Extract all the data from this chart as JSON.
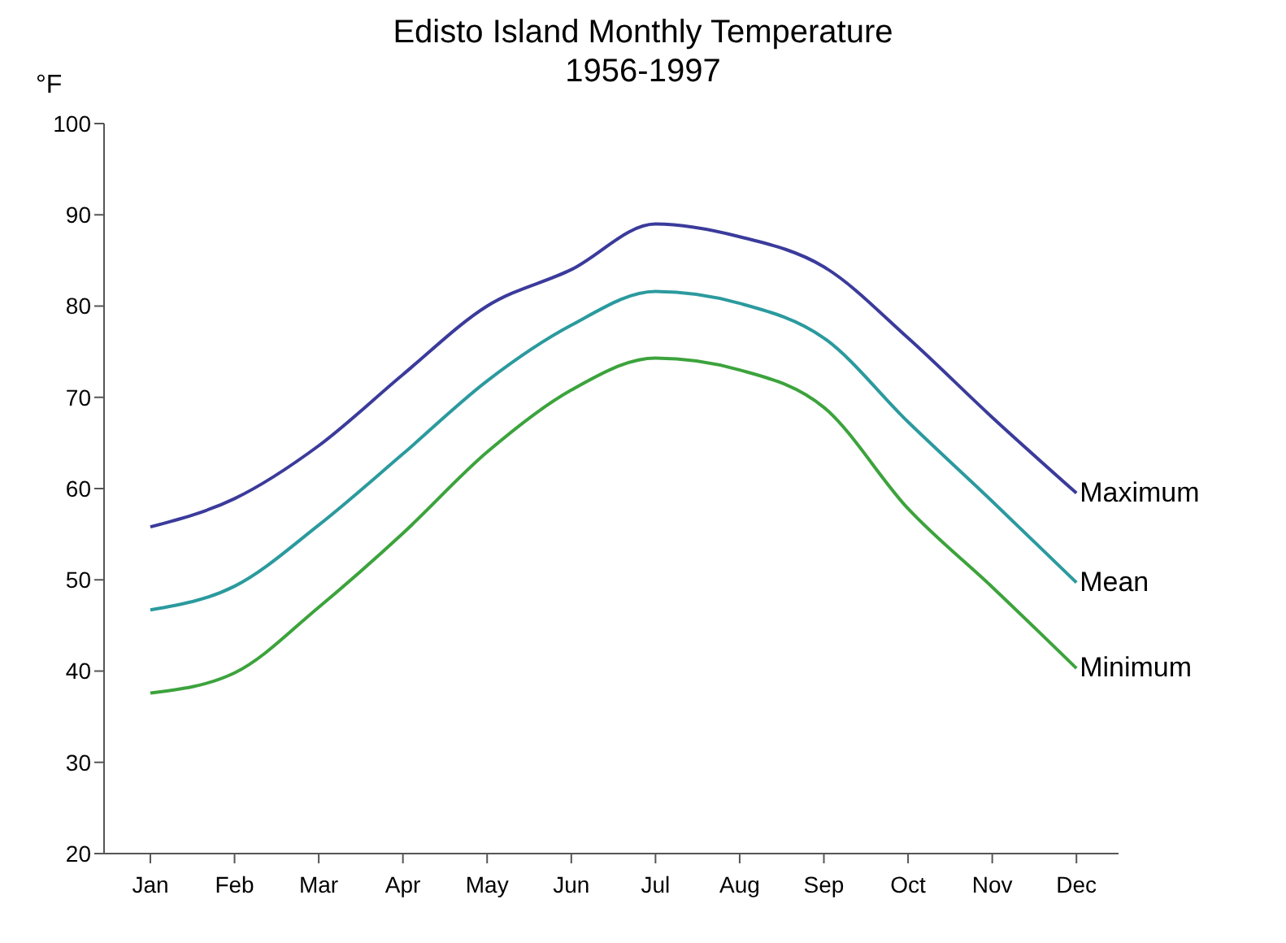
{
  "chart_data": {
    "type": "line",
    "title": "Edisto Island Monthly Temperature",
    "subtitle": "1956-1997",
    "ylabel": "°F",
    "categories": [
      "Jan",
      "Feb",
      "Mar",
      "Apr",
      "May",
      "Jun",
      "Jul",
      "Aug",
      "Sep",
      "Oct",
      "Nov",
      "Dec"
    ],
    "series": [
      {
        "name": "Maximum",
        "color": "#3b3b9c",
        "values": [
          55.8,
          58.9,
          64.7,
          72.5,
          80,
          84,
          89,
          87.6,
          84.3,
          76.5,
          67.8,
          59.5
        ]
      },
      {
        "name": "Mean",
        "color": "#2b9a9e",
        "values": [
          46.7,
          49.3,
          56,
          63.8,
          71.8,
          77.9,
          81.6,
          80.3,
          76.5,
          67.3,
          58.6,
          49.7
        ]
      },
      {
        "name": "Minimum",
        "color": "#3ca33c",
        "values": [
          37.6,
          39.8,
          47,
          55.1,
          64,
          70.8,
          74.3,
          73,
          68.9,
          57.8,
          49.2,
          40.3
        ]
      }
    ],
    "ylim": [
      20,
      100
    ],
    "yticks": [
      20,
      30,
      40,
      50,
      60,
      70,
      80,
      90,
      100
    ],
    "grid": false,
    "legend": false,
    "marker": "none",
    "line_style": "solid"
  }
}
